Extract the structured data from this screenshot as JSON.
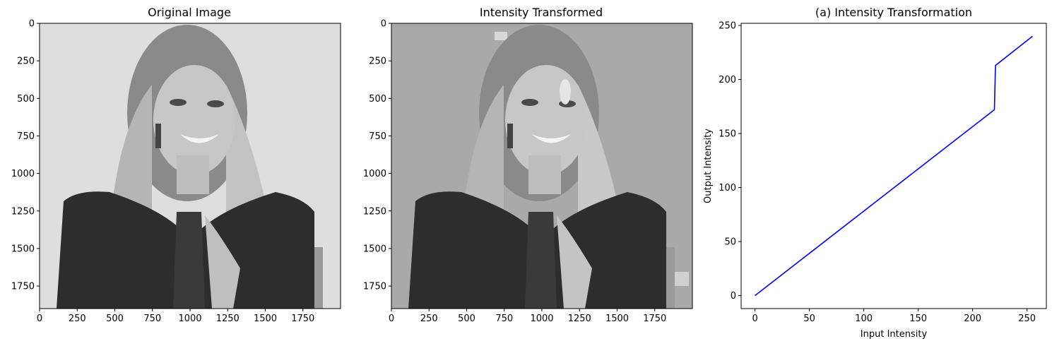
{
  "chart_data": [
    {
      "type": "image",
      "title": "Original Image",
      "xticks": [
        "0",
        "250",
        "500",
        "750",
        "1000",
        "1250",
        "1500",
        "1750"
      ],
      "yticks": [
        "0",
        "250",
        "500",
        "750",
        "1000",
        "1250",
        "1500",
        "1750"
      ],
      "xlim": [
        0,
        2000
      ],
      "ylim": [
        0,
        1900
      ],
      "description": "grayscale photo portrait"
    },
    {
      "type": "image",
      "title": "Intensity Transformed",
      "xticks": [
        "0",
        "250",
        "500",
        "750",
        "1000",
        "1250",
        "1500",
        "1750"
      ],
      "yticks": [
        "0",
        "250",
        "500",
        "750",
        "1000",
        "1250",
        "1500",
        "1750"
      ],
      "xlim": [
        0,
        2000
      ],
      "ylim": [
        0,
        1900
      ],
      "description": "grayscale photo portrait with intensity transformation applied"
    },
    {
      "type": "line",
      "title": "(a) Intensity Transformation",
      "xlabel": "Input Intensity",
      "ylabel": "Output Intensity",
      "xticks": [
        "0",
        "50",
        "100",
        "150",
        "200",
        "250"
      ],
      "yticks": [
        "0",
        "50",
        "100",
        "150",
        "200",
        "250"
      ],
      "xlim": [
        -12.75,
        267.75
      ],
      "ylim": [
        -12,
        252
      ],
      "series": [
        {
          "color": "#0000ff",
          "x": [
            0,
            220,
            221,
            255
          ],
          "y": [
            0,
            172,
            213,
            240
          ]
        }
      ]
    }
  ]
}
